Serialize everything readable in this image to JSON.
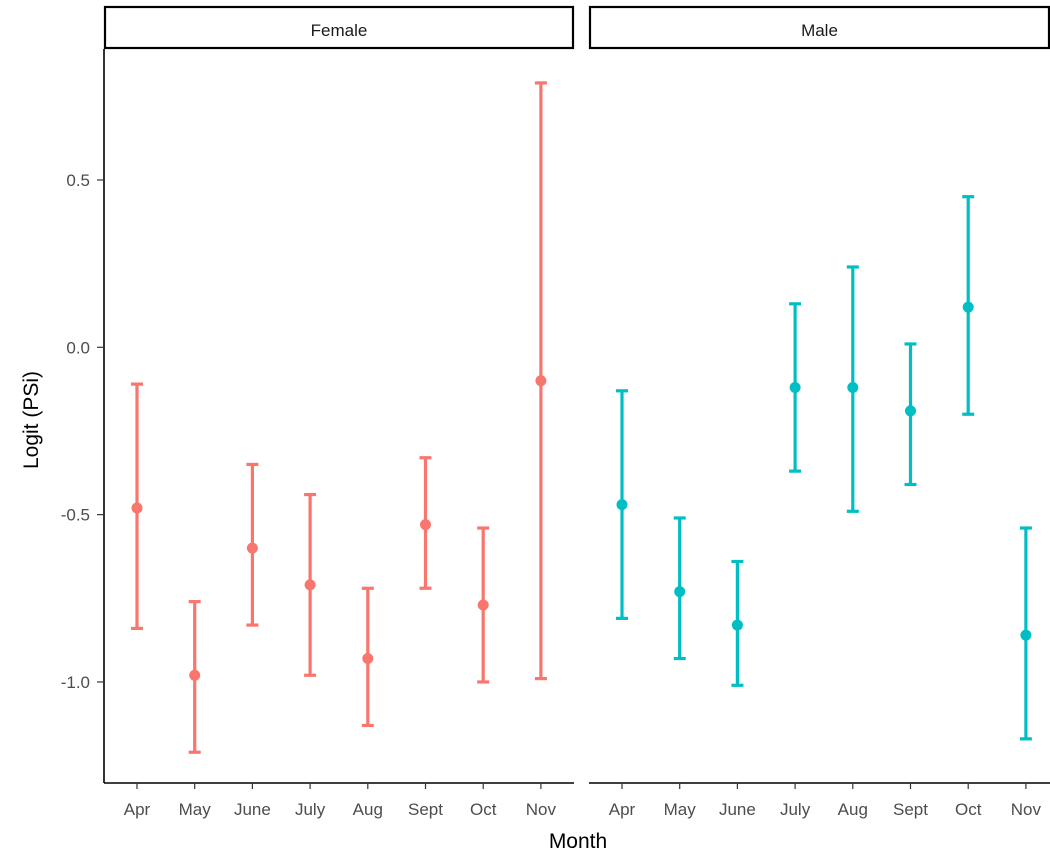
{
  "chart_data": {
    "type": "errorbar",
    "xlabel": "Month",
    "ylabel": "Logit (PSi)",
    "ylim": [
      -1.3,
      0.8
    ],
    "yticks": [
      0.5,
      0.0,
      -0.5,
      -1.0
    ],
    "ytick_labels": [
      "0.5",
      "0.0",
      "-0.5",
      "-1.0"
    ],
    "categories": [
      "Apr",
      "May",
      "June",
      "July",
      "Aug",
      "Sept",
      "Oct",
      "Nov"
    ],
    "facets": [
      {
        "label": "Female",
        "color": "#F8766D",
        "points": [
          {
            "x": "Apr",
            "y": -0.48,
            "ymin": -0.84,
            "ymax": -0.11
          },
          {
            "x": "May",
            "y": -0.98,
            "ymin": -1.21,
            "ymax": -0.76
          },
          {
            "x": "June",
            "y": -0.6,
            "ymin": -0.83,
            "ymax": -0.35
          },
          {
            "x": "July",
            "y": -0.71,
            "ymin": -0.98,
            "ymax": -0.44
          },
          {
            "x": "Aug",
            "y": -0.93,
            "ymin": -1.13,
            "ymax": -0.72
          },
          {
            "x": "Sept",
            "y": -0.53,
            "ymin": -0.72,
            "ymax": -0.33
          },
          {
            "x": "Oct",
            "y": -0.77,
            "ymin": -1.0,
            "ymax": -0.54
          },
          {
            "x": "Nov",
            "y": -0.1,
            "ymin": -0.99,
            "ymax": 0.79
          }
        ]
      },
      {
        "label": "Male",
        "color": "#00BFC4",
        "points": [
          {
            "x": "Apr",
            "y": -0.47,
            "ymin": -0.81,
            "ymax": -0.13
          },
          {
            "x": "May",
            "y": -0.73,
            "ymin": -0.93,
            "ymax": -0.51
          },
          {
            "x": "June",
            "y": -0.83,
            "ymin": -1.01,
            "ymax": -0.64
          },
          {
            "x": "July",
            "y": -0.12,
            "ymin": -0.37,
            "ymax": 0.13
          },
          {
            "x": "Aug",
            "y": -0.12,
            "ymin": -0.49,
            "ymax": 0.24
          },
          {
            "x": "Sept",
            "y": -0.19,
            "ymin": -0.41,
            "ymax": 0.01
          },
          {
            "x": "Oct",
            "y": 0.12,
            "ymin": -0.2,
            "ymax": 0.45
          },
          {
            "x": "Nov",
            "y": -0.86,
            "ymin": -1.17,
            "ymax": -0.54
          }
        ]
      }
    ]
  }
}
